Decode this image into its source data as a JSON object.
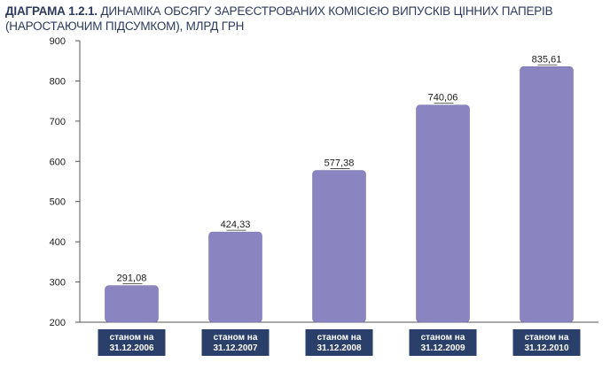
{
  "chart_data": {
    "type": "bar",
    "title_prefix": "ДІАГРАМА 1.2.1.",
    "title": "ДИНАМІКА ОБСЯГУ ЗАРЕЄСТРОВАНИХ КОМІСІЄЮ ВИПУСКІВ ЦІННИХ ПАПЕРІВ (НАРОСТАЮЧИМ ПІДСУМКОМ), МЛРД ГРН",
    "categories": [
      [
        "станом на",
        "31.12.2006"
      ],
      [
        "станом на",
        "31.12.2007"
      ],
      [
        "станом на",
        "31.12.2008"
      ],
      [
        "станом на",
        "31.12.2009"
      ],
      [
        "станом на",
        "31.12.2010"
      ]
    ],
    "values": [
      291.08,
      424.33,
      577.38,
      740.06,
      835.61
    ],
    "value_labels": [
      "291,08",
      "424,33",
      "577,38",
      "740,06",
      "835,61"
    ],
    "ylim": [
      200,
      900
    ],
    "yticks": [
      200,
      300,
      400,
      500,
      600,
      700,
      800,
      900
    ],
    "grid": false,
    "colors": {
      "bar": "#8a85c0",
      "bar_edge": "#6f6aa8",
      "category_box": "#2b3f6b",
      "axis": "#555555",
      "title": "#2c3a5c"
    }
  }
}
